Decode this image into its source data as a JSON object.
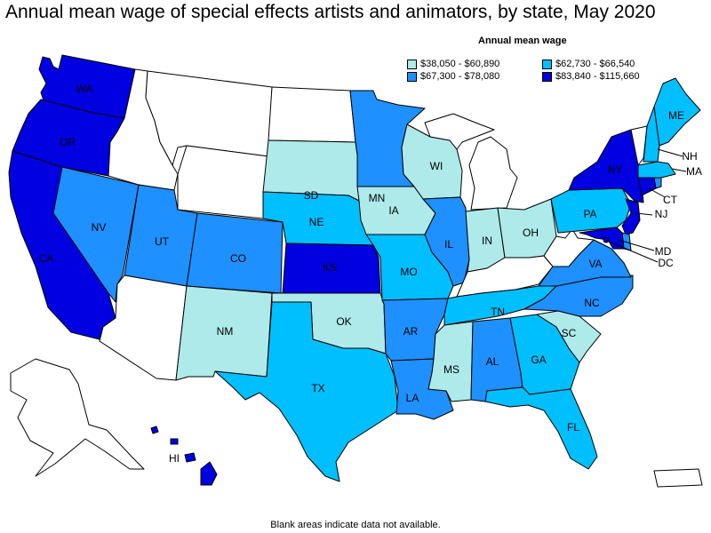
{
  "title": "Annual mean wage of special effects artists and animators, by state, May 2020",
  "legend": {
    "title": "Annual mean wage",
    "bins": [
      {
        "label": "$38,050 - $60,890",
        "color": "#aeeaea"
      },
      {
        "label": "$62,730 - $66,540",
        "color": "#00bfff"
      },
      {
        "label": "$67,300 - $78,080",
        "color": "#1e90ff"
      },
      {
        "label": "$83,840 - $115,660",
        "color": "#0000e0"
      }
    ]
  },
  "footnote": "Blank areas indicate data not available.",
  "colors": {
    "no_data": "#ffffff",
    "border": "#000000"
  },
  "states": {
    "WA": {
      "label": "WA",
      "bin": 3
    },
    "OR": {
      "label": "OR",
      "bin": 3
    },
    "CA": {
      "label": "CA",
      "bin": 3
    },
    "NV": {
      "label": "NV",
      "bin": 2
    },
    "ID": {
      "label": "",
      "bin": -1
    },
    "MT": {
      "label": "",
      "bin": -1
    },
    "WY": {
      "label": "",
      "bin": -1
    },
    "UT": {
      "label": "UT",
      "bin": 2
    },
    "AZ": {
      "label": "",
      "bin": -1
    },
    "CO": {
      "label": "CO",
      "bin": 2
    },
    "NM": {
      "label": "NM",
      "bin": 0
    },
    "ND": {
      "label": "",
      "bin": -1
    },
    "SD": {
      "label": "SD",
      "bin": 0
    },
    "NE": {
      "label": "NE",
      "bin": 1
    },
    "KS": {
      "label": "KS",
      "bin": 3
    },
    "OK": {
      "label": "OK",
      "bin": 0
    },
    "TX": {
      "label": "TX",
      "bin": 1
    },
    "MN": {
      "label": "MN",
      "bin": 2
    },
    "IA": {
      "label": "IA",
      "bin": 0
    },
    "MO": {
      "label": "MO",
      "bin": 1
    },
    "AR": {
      "label": "AR",
      "bin": 2
    },
    "LA": {
      "label": "LA",
      "bin": 2
    },
    "WI": {
      "label": "WI",
      "bin": 0
    },
    "IL": {
      "label": "IL",
      "bin": 2
    },
    "MI": {
      "label": "",
      "bin": -1
    },
    "IN": {
      "label": "IN",
      "bin": 0
    },
    "OH": {
      "label": "OH",
      "bin": 0
    },
    "KY": {
      "label": "",
      "bin": -1
    },
    "TN": {
      "label": "TN",
      "bin": 1
    },
    "MS": {
      "label": "MS",
      "bin": 0
    },
    "AL": {
      "label": "AL",
      "bin": 2
    },
    "GA": {
      "label": "GA",
      "bin": 1
    },
    "FL": {
      "label": "FL",
      "bin": 1
    },
    "SC": {
      "label": "SC",
      "bin": 0
    },
    "NC": {
      "label": "NC",
      "bin": 2
    },
    "VA": {
      "label": "VA",
      "bin": 2
    },
    "WV": {
      "label": "",
      "bin": -1
    },
    "PA": {
      "label": "PA",
      "bin": 1
    },
    "NY": {
      "label": "NY",
      "bin": 3
    },
    "VT": {
      "label": "",
      "bin": -1
    },
    "NH": {
      "label": "NH",
      "bin": 1
    },
    "ME": {
      "label": "ME",
      "bin": 1
    },
    "MA": {
      "label": "MA",
      "bin": 1
    },
    "RI": {
      "label": "",
      "bin": 2
    },
    "CT": {
      "label": "CT",
      "bin": 3
    },
    "NJ": {
      "label": "NJ",
      "bin": 3
    },
    "DE": {
      "label": "",
      "bin": 2
    },
    "MD": {
      "label": "MD",
      "bin": 3
    },
    "DC": {
      "label": "DC",
      "bin": 3
    },
    "AK": {
      "label": "",
      "bin": -1
    },
    "HI": {
      "label": "HI",
      "bin": 3
    },
    "PR": {
      "label": "",
      "bin": -1
    }
  }
}
